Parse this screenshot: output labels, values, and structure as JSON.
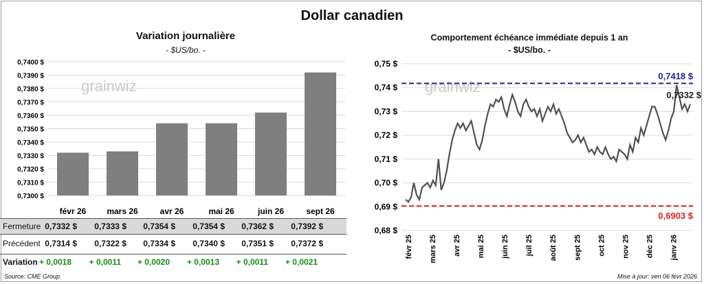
{
  "title": "Dollar canadien",
  "left_panel": {
    "title": "Variation  journalière",
    "subtitle": "- $US/bo. -",
    "watermark": "grainwiz"
  },
  "right_panel": {
    "title": "Comportement échéance immédiate depuis 1 an",
    "subtitle": "- $US/bo. -",
    "watermark": "grainwiz"
  },
  "table": {
    "rows": [
      {
        "label": "Fermeture",
        "cells": [
          "0,7332  $",
          "0,7333  $",
          "0,7354  $",
          "0,7354  $",
          "0,7362  $",
          "0,7392  $"
        ]
      },
      {
        "label": "Précédent",
        "cells": [
          "0,7314  $",
          "0,7322  $",
          "0,7334  $",
          "0,7340  $",
          "0,7351  $",
          "0,7372  $"
        ]
      },
      {
        "label": "Variation",
        "cells": [
          "+ 0,0018",
          "+ 0,0011",
          "+ 0,0020",
          "+ 0,0013",
          "+ 0,0011",
          "+ 0,0021"
        ]
      }
    ]
  },
  "footer": {
    "source": "Source: CME Group",
    "updated": "Mise à jour: ven 06 févr 2026"
  },
  "colors": {
    "bar": "#7f7f7f",
    "line": "#505050",
    "high_line": "#1f1f9f",
    "low_line": "#dd2020",
    "variation": "#1a8a1a"
  },
  "chart_data": [
    {
      "type": "bar",
      "categories": [
        "févr 26",
        "mars 26",
        "avr 26",
        "mai 26",
        "juin 26",
        "sept 26"
      ],
      "values": [
        0.7332,
        0.7333,
        0.7354,
        0.7354,
        0.7362,
        0.7392
      ],
      "ylim": [
        0.73,
        0.74
      ],
      "yticks": [
        "0,7300 $",
        "0,7310 $",
        "0,7320 $",
        "0,7330 $",
        "0,7340 $",
        "0,7350 $",
        "0,7360 $",
        "0,7370 $",
        "0,7380 $",
        "0,7390 $",
        "0,7400 $"
      ],
      "grid": true
    },
    {
      "type": "line",
      "x_start": "févr 25",
      "x_end": "févr 26",
      "xticks": [
        "févr 25",
        "mars 25",
        "avr 25",
        "mai 25",
        "juin 25",
        "juil 25",
        "août 25",
        "sept 25",
        "oct 25",
        "nov 25",
        "déc 25",
        "janv 26"
      ],
      "ylim": [
        0.68,
        0.75
      ],
      "yticks": [
        "0,68 $",
        "0,69 $",
        "0,70 $",
        "0,71 $",
        "0,72 $",
        "0,73 $",
        "0,74 $",
        "0,75 $"
      ],
      "grid": true,
      "values": [
        0.693,
        0.692,
        0.694,
        0.7,
        0.695,
        0.693,
        0.698,
        0.699,
        0.7,
        0.698,
        0.701,
        0.699,
        0.71,
        0.697,
        0.7,
        0.705,
        0.712,
        0.718,
        0.722,
        0.725,
        0.723,
        0.725,
        0.722,
        0.724,
        0.726,
        0.721,
        0.716,
        0.714,
        0.718,
        0.724,
        0.729,
        0.733,
        0.732,
        0.735,
        0.734,
        0.736,
        0.731,
        0.728,
        0.733,
        0.737,
        0.734,
        0.73,
        0.728,
        0.733,
        0.735,
        0.732,
        0.73,
        0.731,
        0.728,
        0.731,
        0.726,
        0.729,
        0.732,
        0.73,
        0.733,
        0.729,
        0.731,
        0.728,
        0.725,
        0.721,
        0.719,
        0.717,
        0.718,
        0.72,
        0.717,
        0.719,
        0.716,
        0.713,
        0.714,
        0.712,
        0.715,
        0.713,
        0.712,
        0.715,
        0.712,
        0.71,
        0.711,
        0.709,
        0.714,
        0.713,
        0.712,
        0.71,
        0.716,
        0.713,
        0.719,
        0.717,
        0.723,
        0.72,
        0.724,
        0.728,
        0.732,
        0.732,
        0.729,
        0.725,
        0.721,
        0.718,
        0.722,
        0.727,
        0.73,
        0.741,
        0.736,
        0.731,
        0.733,
        0.73,
        0.733
      ],
      "reference_lines": [
        {
          "label": "0,7418 $",
          "value": 0.7418,
          "color": "#1f1f9f"
        },
        {
          "label": "0,6903 $",
          "value": 0.6903,
          "color": "#dd2020"
        }
      ],
      "last_label": "0,7332 $"
    }
  ]
}
